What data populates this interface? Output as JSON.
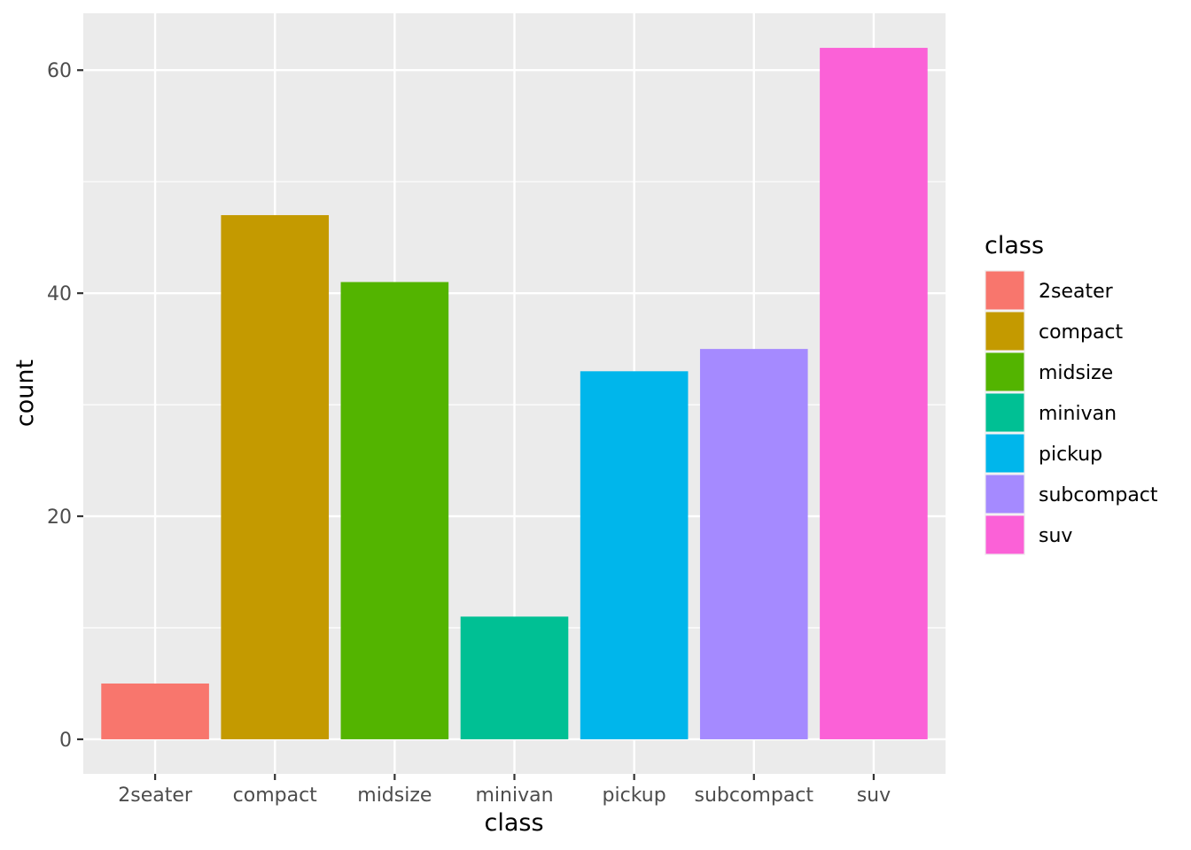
{
  "chart_data": {
    "type": "bar",
    "categories": [
      "2seater",
      "compact",
      "midsize",
      "minivan",
      "pickup",
      "subcompact",
      "suv"
    ],
    "values": [
      5,
      47,
      41,
      11,
      33,
      35,
      62
    ],
    "colors": [
      "#F8766D",
      "#C49A00",
      "#53B400",
      "#00C094",
      "#00B6EB",
      "#A58AFF",
      "#FB61D7"
    ],
    "title": "",
    "xlabel": "class",
    "ylabel": "count",
    "ylim": [
      -3.1,
      65.1
    ],
    "yticks": [
      0,
      20,
      40,
      60
    ],
    "ytick_labels": [
      "0",
      "20",
      "40",
      "60"
    ],
    "grid": true,
    "panel_background": "#EBEBEB",
    "legend": {
      "title": "class",
      "position": "right",
      "entries": [
        "2seater",
        "compact",
        "midsize",
        "minivan",
        "pickup",
        "subcompact",
        "suv"
      ]
    }
  }
}
